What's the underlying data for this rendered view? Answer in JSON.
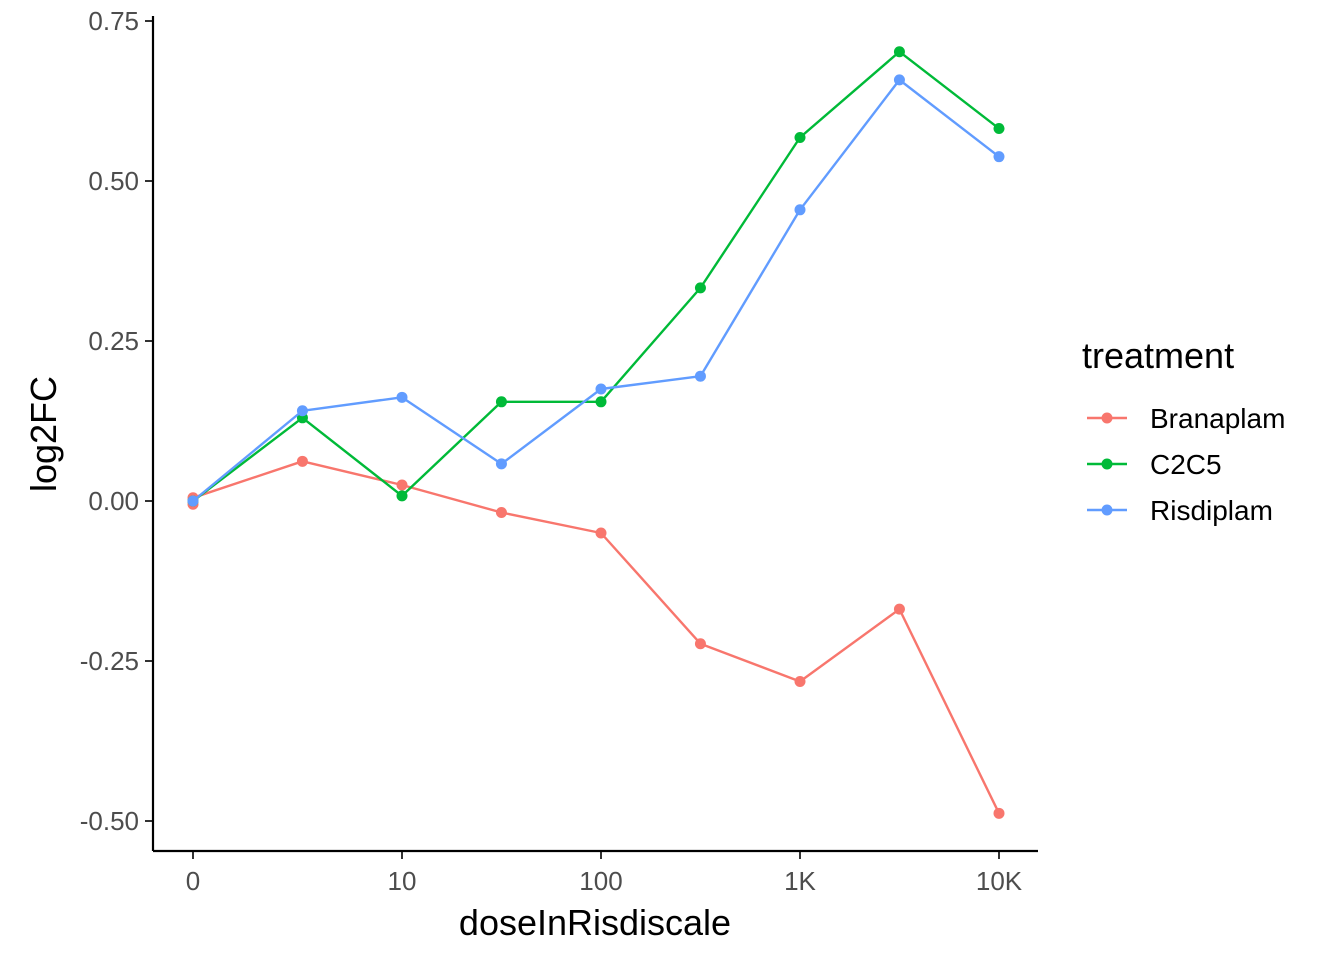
{
  "chart_data": {
    "type": "line",
    "xlabel": "doseInRisdiscale",
    "ylabel": "log2FC",
    "x_scale": "log10 (0 shown at far left)",
    "x_ticks": [
      {
        "value": 0,
        "label": "0"
      },
      {
        "value": 10,
        "label": "10"
      },
      {
        "value": 100,
        "label": "100"
      },
      {
        "value": 1000,
        "label": "1K"
      },
      {
        "value": 10000,
        "label": "10K"
      }
    ],
    "y_ticks": [
      {
        "value": 0.75,
        "label": "0.75"
      },
      {
        "value": 0.5,
        "label": "0.50"
      },
      {
        "value": 0.25,
        "label": "0.25"
      },
      {
        "value": 0.0,
        "label": "0.00"
      },
      {
        "value": -0.25,
        "label": "-0.25"
      },
      {
        "value": -0.5,
        "label": "-0.50"
      }
    ],
    "ylim": [
      -0.54,
      0.76
    ],
    "grid": false,
    "legend": {
      "title": "treatment",
      "placement": "right"
    },
    "x": [
      0,
      3.16,
      10,
      31.6,
      100,
      316,
      1000,
      3160,
      10000
    ],
    "series": [
      {
        "name": "Branaplam",
        "color": "#F8766D",
        "values": [
          0.005,
          0.062,
          0.025,
          -0.018,
          -0.05,
          -0.223,
          -0.282,
          -0.169,
          -0.488
        ],
        "extra_points": [
          {
            "x": 0,
            "y": -0.005
          }
        ]
      },
      {
        "name": "C2C5",
        "color": "#00BA38",
        "values": [
          0.0,
          0.13,
          0.008,
          0.155,
          0.155,
          0.333,
          0.568,
          0.702,
          0.582
        ]
      },
      {
        "name": "Risdiplam",
        "color": "#619CFF",
        "values": [
          0.0,
          0.141,
          0.162,
          0.058,
          0.175,
          0.195,
          0.455,
          0.658,
          0.538
        ]
      }
    ]
  }
}
